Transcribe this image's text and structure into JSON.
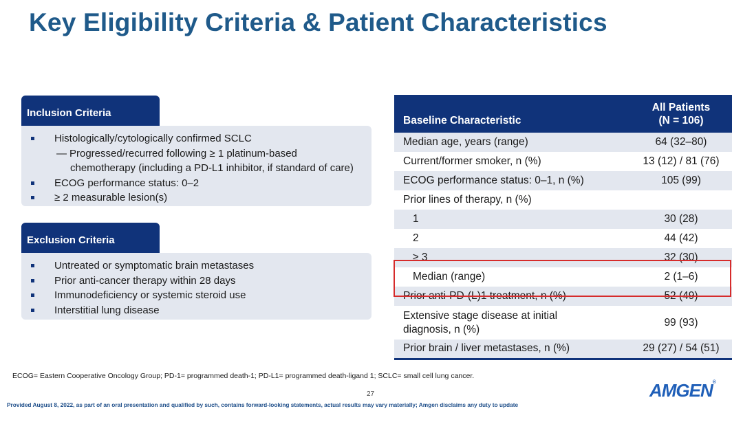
{
  "title": "Key Eligibility Criteria & Patient Characteristics",
  "inclusion": {
    "header": "Inclusion Criteria",
    "items": [
      "Histologically/cytologically confirmed SCLC",
      "ECOG performance status: 0–2",
      "≥ 2 measurable lesion(s)"
    ],
    "sub_item": {
      "line1": "Progressed/recurred following ≥ 1 platinum-based",
      "line2": "chemotherapy (including a PD-L1 inhibitor, if standard of care)"
    }
  },
  "exclusion": {
    "header": "Exclusion Criteria",
    "items": [
      "Untreated or symptomatic brain metastases",
      "Prior anti-cancer therapy within 28 days",
      "Immunodeficiency or systemic steroid use",
      "Interstitial lung disease"
    ]
  },
  "table": {
    "header_col1": "Baseline Characteristic",
    "header_col2_line1": "All Patients",
    "header_col2_line2": "(N = 106)",
    "rows": [
      {
        "label": "Median age, years (range)",
        "value": "64 (32–80)"
      },
      {
        "label": "Current/former smoker, n (%)",
        "value": "13 (12) / 81 (76)"
      },
      {
        "label": "ECOG performance status: 0–1, n (%)",
        "value": "105 (99)"
      },
      {
        "label": "Prior lines of therapy, n (%)",
        "value": ""
      },
      {
        "label": "1",
        "value": "30 (28)"
      },
      {
        "label": "2",
        "value": "44 (42)"
      },
      {
        "label": "≥ 3",
        "value": "32 (30)"
      },
      {
        "label": "Median (range)",
        "value": "2 (1–6)"
      },
      {
        "label": "Prior anti-PD-(L)1 treatment, n (%)",
        "value": "52 (49)"
      },
      {
        "label": "Extensive stage disease at initial",
        "label2": "diagnosis, n (%)",
        "value": "99 (93)"
      },
      {
        "label": "Prior brain / liver metastases, n (%)",
        "value": "29 (27) / 54 (51)"
      }
    ]
  },
  "footnote": "ECOG= Eastern Cooperative Oncology Group; PD-1= programmed death-1; PD-L1= programmed death-ligand 1; SCLC= small cell lung cancer.",
  "page_number": "27",
  "disclaimer": "Provided August 8, 2022, as part of an oral presentation and qualified by such, contains forward-looking statements, actual results may vary materially; Amgen disclaims any duty to update",
  "logo_text": "AMGEN",
  "colors": {
    "title": "#1f5a8a",
    "header_bg": "#10337a",
    "shaded_row": "#e3e7ef",
    "highlight": "#d62b2b",
    "logo": "#1f5fb8"
  }
}
